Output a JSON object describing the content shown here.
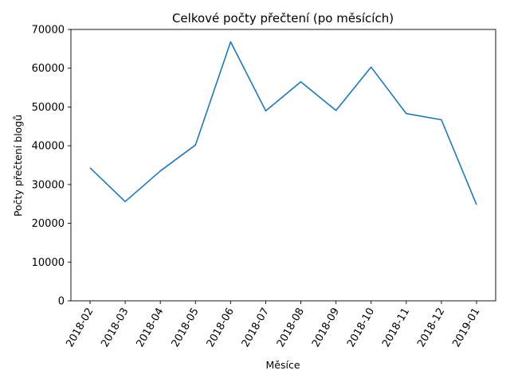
{
  "chart_data": {
    "type": "line",
    "title": "Celkové počty přečtení (po měsících)",
    "xlabel": "Měsíce",
    "ylabel": "Počty přečtení blogů",
    "categories": [
      "2018-02",
      "2018-03",
      "2018-04",
      "2018-05",
      "2018-06",
      "2018-07",
      "2018-08",
      "2018-09",
      "2018-10",
      "2018-11",
      "2018-12",
      "2019-01"
    ],
    "series": [
      {
        "values": [
          34300,
          25600,
          33500,
          40200,
          66800,
          49000,
          56500,
          49100,
          60300,
          48300,
          46700,
          24800
        ]
      }
    ],
    "ylim": [
      0,
      70000
    ],
    "yticks": [
      0,
      10000,
      20000,
      30000,
      40000,
      50000,
      60000,
      70000
    ],
    "grid": false,
    "legend": "none",
    "colors": {
      "line": "#1f77b4",
      "axis": "#000000",
      "background": "#ffffff"
    }
  }
}
